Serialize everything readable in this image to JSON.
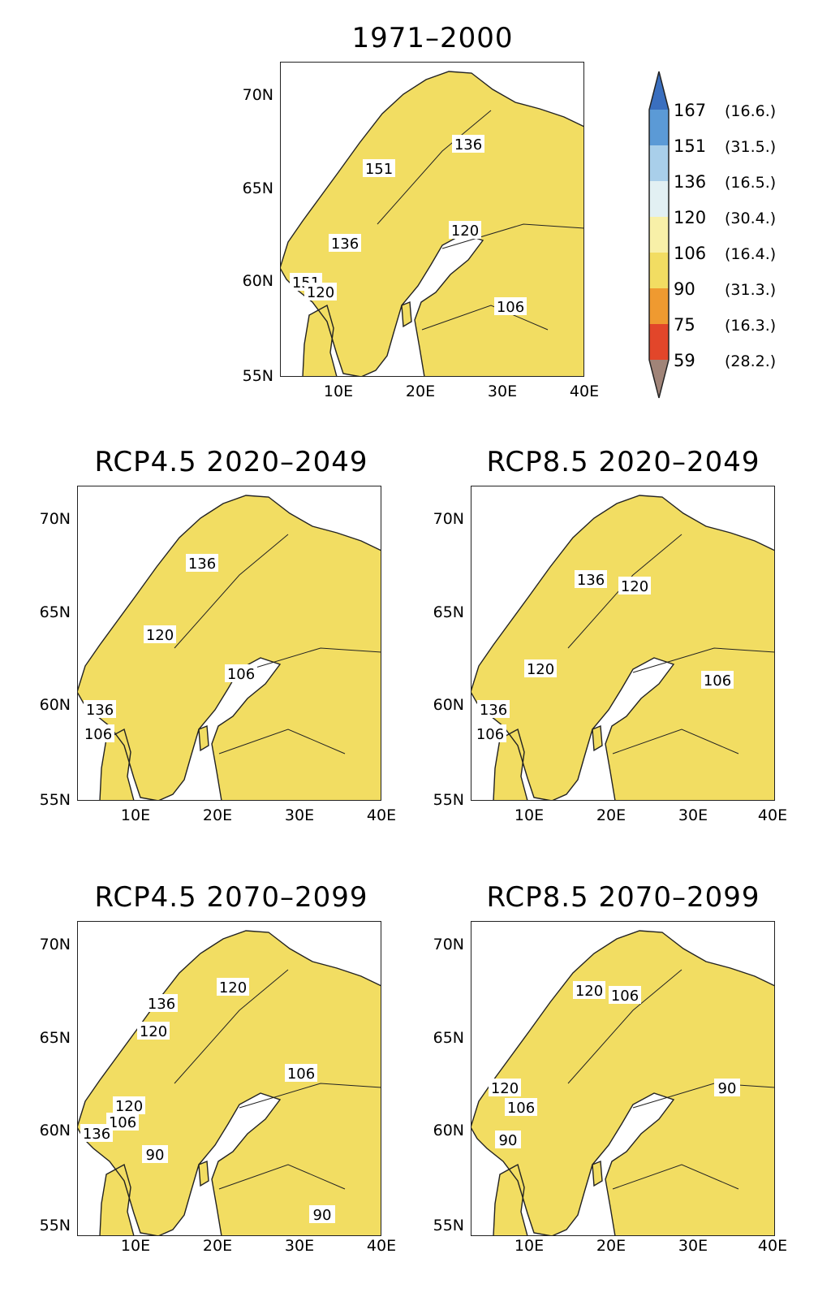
{
  "panels": [
    {
      "id": "p0",
      "title": "1971–2000",
      "labels": [
        "136",
        "151",
        "120",
        "136",
        "151",
        "120",
        "106"
      ]
    },
    {
      "id": "p1",
      "title": "RCP4.5  2020–2049",
      "labels": [
        "136",
        "120",
        "106",
        "136",
        "106"
      ]
    },
    {
      "id": "p2",
      "title": "RCP8.5  2020–2049",
      "labels": [
        "136",
        "120",
        "120",
        "106",
        "136",
        "106"
      ]
    },
    {
      "id": "p3",
      "title": "RCP4.5  2070–2099",
      "labels": [
        "136",
        "120",
        "120",
        "106",
        "120",
        "106",
        "136",
        "90",
        "90"
      ]
    },
    {
      "id": "p4",
      "title": "RCP8.5  2070–2099",
      "labels": [
        "120",
        "106",
        "90",
        "120",
        "106",
        "90"
      ]
    }
  ],
  "axes": {
    "lat_ticks": [
      "70N",
      "65N",
      "60N",
      "55N"
    ],
    "lon_ticks": [
      "10E",
      "20E",
      "30E",
      "40E"
    ]
  },
  "legend": {
    "levels": [
      {
        "value": "167",
        "pct": "(16.6.)"
      },
      {
        "value": "151",
        "pct": "(31.5.)"
      },
      {
        "value": "136",
        "pct": "(16.5.)"
      },
      {
        "value": "120",
        "pct": "(30.4.)"
      },
      {
        "value": "106",
        "pct": "(16.4.)"
      },
      {
        "value": "90",
        "pct": "(31.3.)"
      },
      {
        "value": "75",
        "pct": "(16.3.)"
      },
      {
        "value": "59",
        "pct": "(28.2.)"
      }
    ],
    "colors": [
      "#3a6fbf",
      "#5b9ad6",
      "#a9cfea",
      "#e2f0f3",
      "#f8f0a8",
      "#f2dd62",
      "#ef9a30",
      "#e2462a",
      "#a08478"
    ]
  }
}
